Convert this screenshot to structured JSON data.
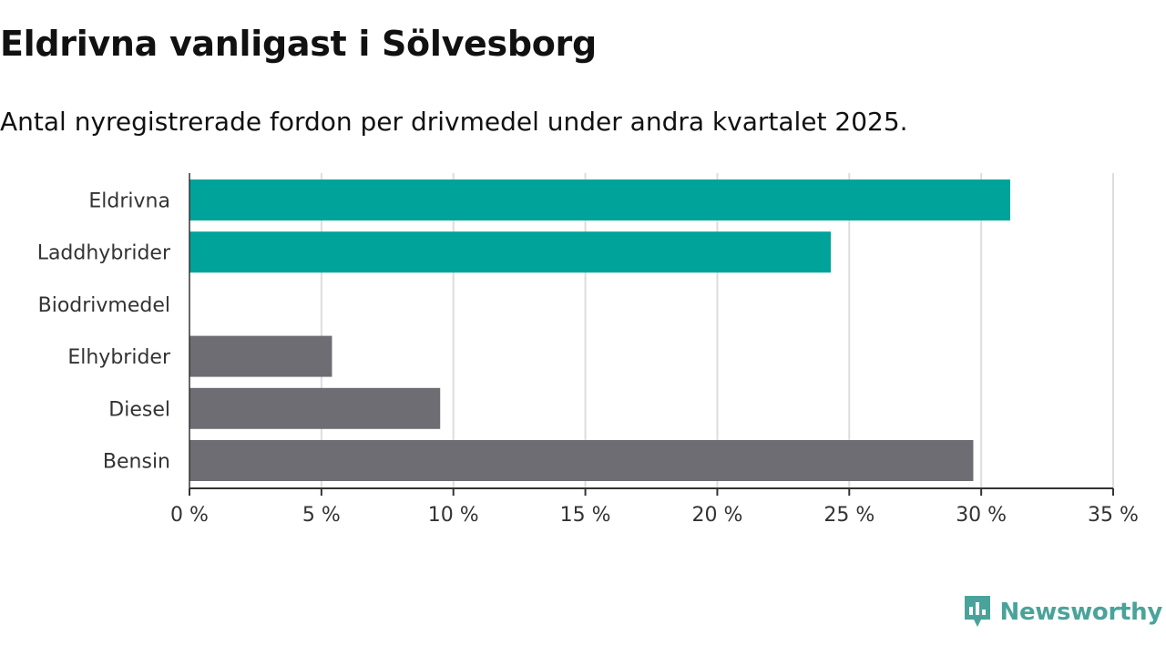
{
  "title": "Eldrivna vanligast i Sölvesborg",
  "subtitle": "Antal nyregistrerade fordon per drivmedel under andra kvartalet 2025.",
  "brand": {
    "name": "Newsworthy",
    "icon": "newsworthy-logo-icon"
  },
  "colors": {
    "highlight": "#00a39a",
    "default": "#6e6d73",
    "grid": "#dddddd",
    "axis": "#333333",
    "brand": "#4aa39a"
  },
  "chart_data": {
    "type": "bar",
    "orientation": "horizontal",
    "categories": [
      "Eldrivna",
      "Laddhybrider",
      "Biodrivmedel",
      "Elhybrider",
      "Diesel",
      "Bensin"
    ],
    "values": [
      31.1,
      24.3,
      0,
      5.4,
      9.5,
      29.7
    ],
    "highlighted": [
      true,
      true,
      true,
      false,
      false,
      false
    ],
    "xlim": [
      0,
      35
    ],
    "xticks": [
      0,
      5,
      10,
      15,
      20,
      25,
      30,
      35
    ],
    "xtick_labels": [
      "0 %",
      "5 %",
      "10 %",
      "15 %",
      "20 %",
      "25 %",
      "30 %",
      "35 %"
    ],
    "grid": true
  }
}
